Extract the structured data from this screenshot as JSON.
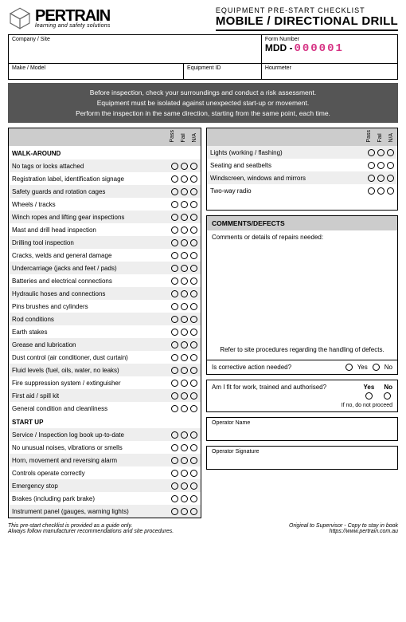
{
  "logo": {
    "name": "PERTRAIN",
    "tag": "learning and safety solutions"
  },
  "title": {
    "sup": "EQUIPMENT PRE-START CHECKLIST",
    "main": "MOBILE / DIRECTIONAL DRILL"
  },
  "info": {
    "company_label": "Company / Site",
    "form_label": "Form Number",
    "form_prefix": "MDD -",
    "form_value": "000001",
    "make_label": "Make / Model",
    "equip_label": "Equipment ID",
    "hour_label": "Hourmeter"
  },
  "notice": {
    "l1": "Before inspection, check your surroundings and conduct a risk assessment.",
    "l2": "Equipment must be isolated against unexpected start-up or movement.",
    "l3": "Perform the inspection in the same direction, starting from the same point, each time."
  },
  "pfn": {
    "pass": "Pass",
    "fail": "Fail",
    "na": "N/A"
  },
  "sections": {
    "walk": "WALK-AROUND",
    "startup": "START UP"
  },
  "left_walk": [
    "No tags or locks attached",
    "Registration label, identification signage",
    "Safety guards and rotation cages",
    "Wheels / tracks",
    "Winch ropes and lifting gear inspections",
    "Mast and drill head inspection",
    "Drilling tool inspection",
    "Cracks, welds and general damage",
    "Undercarriage (jacks and feet / pads)",
    "Batteries and electrical connections",
    "Hydraulic hoses and connections",
    "Pins brushes and cylinders",
    "Rod conditions",
    "Earth stakes",
    "Grease and lubrication",
    "Dust control (air conditioner, dust curtain)",
    "Fluid levels (fuel, oils, water, no leaks)",
    "Fire suppression system / extinguisher",
    "First aid / spill kit",
    "General condition and cleanliness"
  ],
  "left_startup": [
    "Service / Inspection log book up-to-date",
    "No unusual noises, vibrations or smells",
    "Horn, movement and reversing alarm",
    "Controls operate correctly",
    "Emergency stop",
    "Brakes (including park brake)",
    "Instrument panel (gauges, warning lights)"
  ],
  "right_items": [
    "Lights (working / flashing)",
    "Seating and seatbelts",
    "Windscreen, windows and mirrors",
    "Two-way radio"
  ],
  "comments": {
    "head": "COMMENTS/DEFECTS",
    "prompt": "Comments or details of repairs needed:",
    "refer": "Refer to site procedures regarding the handling of defects.",
    "corrective": "Is corrective action needed?",
    "yes": "Yes",
    "no": "No"
  },
  "fit": {
    "q": "Am I fit for work, trained and authorised?",
    "yes": "Yes",
    "no": "No",
    "noproceed": "If no, do not proceed"
  },
  "sig": {
    "op": "Operator Name",
    "sig": "Operator Signature"
  },
  "footer": {
    "l1": "This pre-start checklist is provided as a guide only.",
    "l2": "Always follow manufacturer recommendations and site procedures.",
    "r1": "Original to Supervisor - Copy to stay in book",
    "r2": "https://www.pertrain.com.au"
  }
}
